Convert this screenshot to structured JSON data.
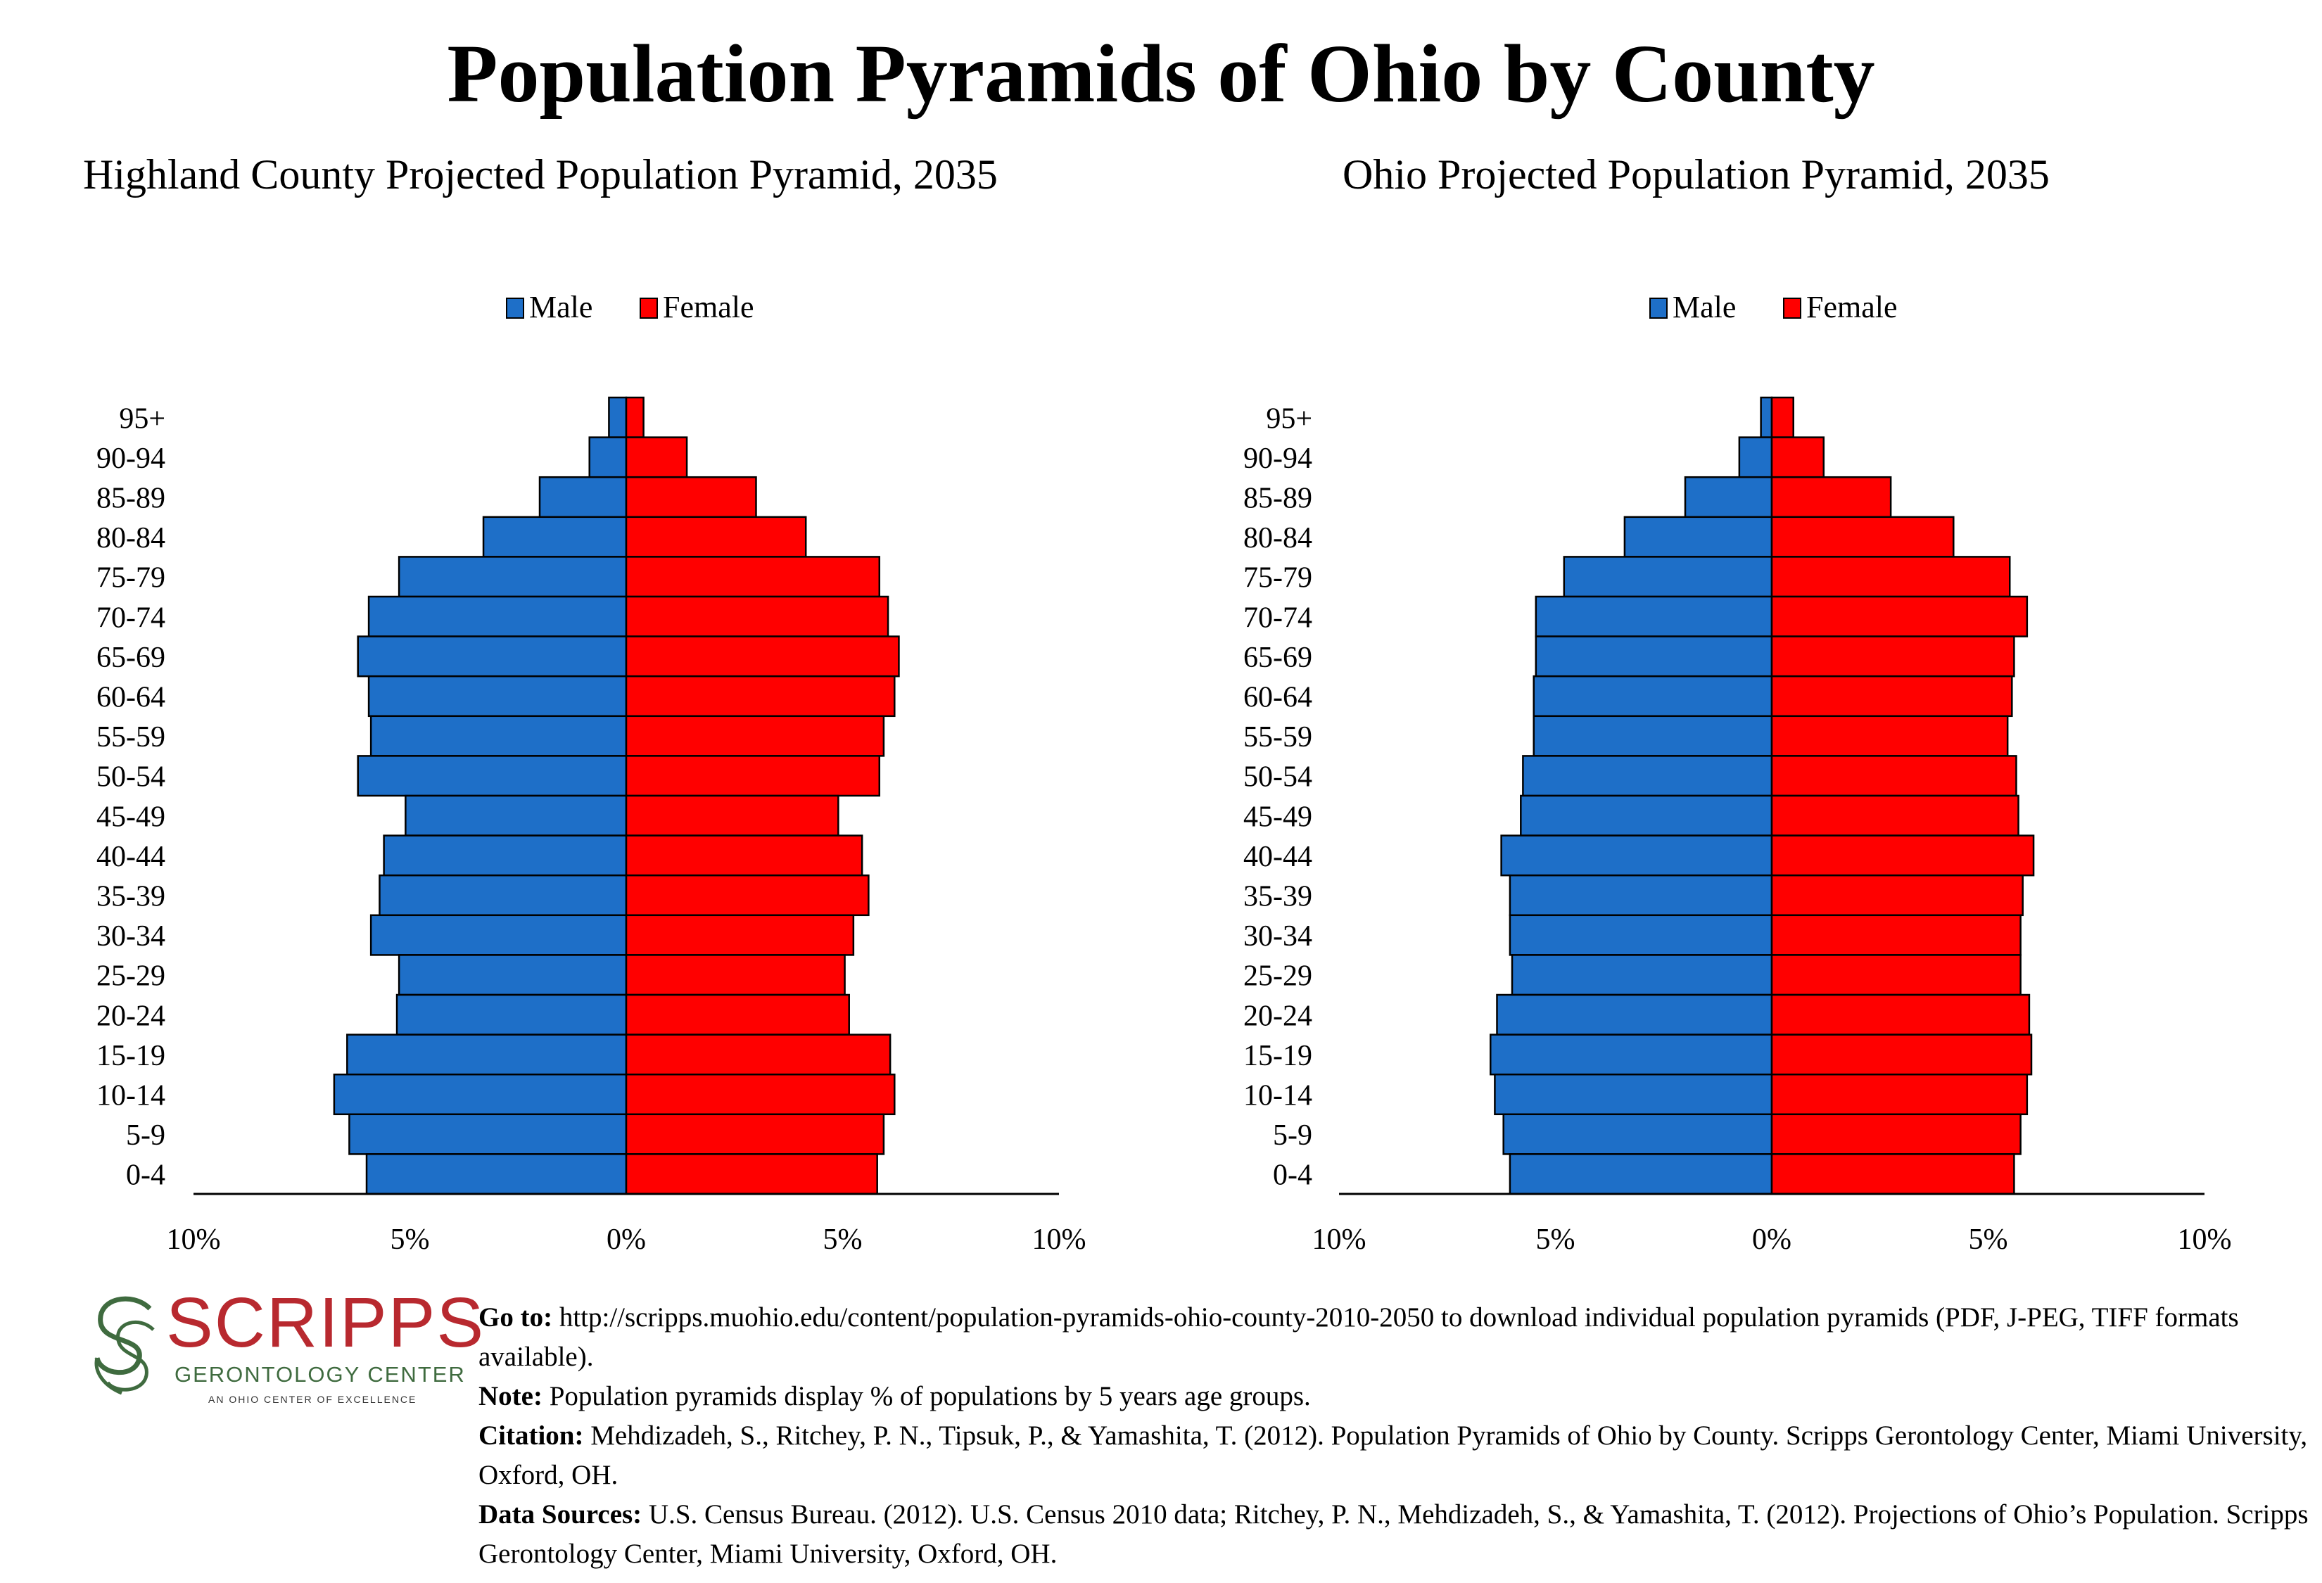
{
  "page_title": "Population Pyramids of Ohio by County",
  "colors": {
    "male": "#1e6fc8",
    "female": "#ff0000",
    "axis": "#000000",
    "logo_red": "#b8292f",
    "logo_green": "#3f6b3f"
  },
  "chart_data": [
    {
      "type": "bar",
      "orientation": "horizontal-pyramid",
      "title": "Highland County Projected Population Pyramid, 2035",
      "categories": [
        "95+",
        "90-94",
        "85-89",
        "80-84",
        "75-79",
        "70-74",
        "65-69",
        "60-64",
        "55-59",
        "50-54",
        "45-49",
        "40-44",
        "35-39",
        "30-34",
        "25-29",
        "20-24",
        "15-19",
        "10-14",
        "5-9",
        "0-4"
      ],
      "series": [
        {
          "name": "Male",
          "values": [
            0.4,
            0.85,
            2.0,
            3.3,
            5.25,
            5.95,
            6.2,
            5.95,
            5.9,
            6.2,
            5.1,
            5.6,
            5.7,
            5.9,
            5.25,
            5.3,
            6.45,
            6.75,
            6.4,
            6.0
          ]
        },
        {
          "name": "Female",
          "values": [
            0.4,
            1.4,
            3.0,
            4.15,
            5.85,
            6.05,
            6.3,
            6.2,
            5.95,
            5.85,
            4.9,
            5.45,
            5.6,
            5.25,
            5.05,
            5.15,
            6.1,
            6.2,
            5.95,
            5.8
          ]
        }
      ],
      "xlim": [
        -10,
        10
      ],
      "x_tick_labels": [
        "10%",
        "5%",
        "0%",
        "5%",
        "10%"
      ],
      "legend": [
        "Male",
        "Female"
      ],
      "legend_position": "top-center",
      "grid": false
    },
    {
      "type": "bar",
      "orientation": "horizontal-pyramid",
      "title": "Ohio Projected Population Pyramid, 2035",
      "categories": [
        "95+",
        "90-94",
        "85-89",
        "80-84",
        "75-79",
        "70-74",
        "65-69",
        "60-64",
        "55-59",
        "50-54",
        "45-49",
        "40-44",
        "35-39",
        "30-34",
        "25-29",
        "20-24",
        "15-19",
        "10-14",
        "5-9",
        "0-4"
      ],
      "series": [
        {
          "name": "Male",
          "values": [
            0.25,
            0.75,
            2.0,
            3.4,
            4.8,
            5.45,
            5.45,
            5.5,
            5.5,
            5.75,
            5.8,
            6.25,
            6.05,
            6.05,
            6.0,
            6.35,
            6.5,
            6.4,
            6.2,
            6.05
          ]
        },
        {
          "name": "Female",
          "values": [
            0.5,
            1.2,
            2.75,
            4.2,
            5.5,
            5.9,
            5.6,
            5.55,
            5.45,
            5.65,
            5.7,
            6.05,
            5.8,
            5.75,
            5.75,
            5.95,
            6.0,
            5.9,
            5.75,
            5.6
          ]
        }
      ],
      "xlim": [
        -10,
        10
      ],
      "x_tick_labels": [
        "10%",
        "5%",
        "0%",
        "5%",
        "10%"
      ],
      "legend": [
        "Male",
        "Female"
      ],
      "legend_position": "top-center",
      "grid": false
    }
  ],
  "logo": {
    "name": "SCRIPPS",
    "subtitle": "GERONTOLOGY CENTER",
    "tagline": "AN OHIO CENTER OF EXCELLENCE"
  },
  "footnotes": {
    "goto_label": "Go to:",
    "goto_text": " http://scripps.muohio.edu/content/population-pyramids-ohio-county-2010-2050 to download individual population pyramids (PDF, J-PEG, TIFF formats available).",
    "note_label": "Note:",
    "note_text": " Population pyramids display % of populations by 5 years age groups.",
    "citation_label": "Citation:",
    "citation_text": " Mehdizadeh, S., Ritchey, P. N., Tipsuk, P., & Yamashita, T. (2012). Population Pyramids of Ohio by County. Scripps Gerontology Center, Miami University, Oxford, OH.",
    "sources_label": "Data Sources:",
    "sources_text": " U.S. Census Bureau. (2012). U.S. Census 2010 data; Ritchey, P. N., Mehdizadeh, S., & Yamashita, T. (2012). Projections of Ohio’s Population. Scripps Gerontology Center, Miami University, Oxford, OH."
  }
}
